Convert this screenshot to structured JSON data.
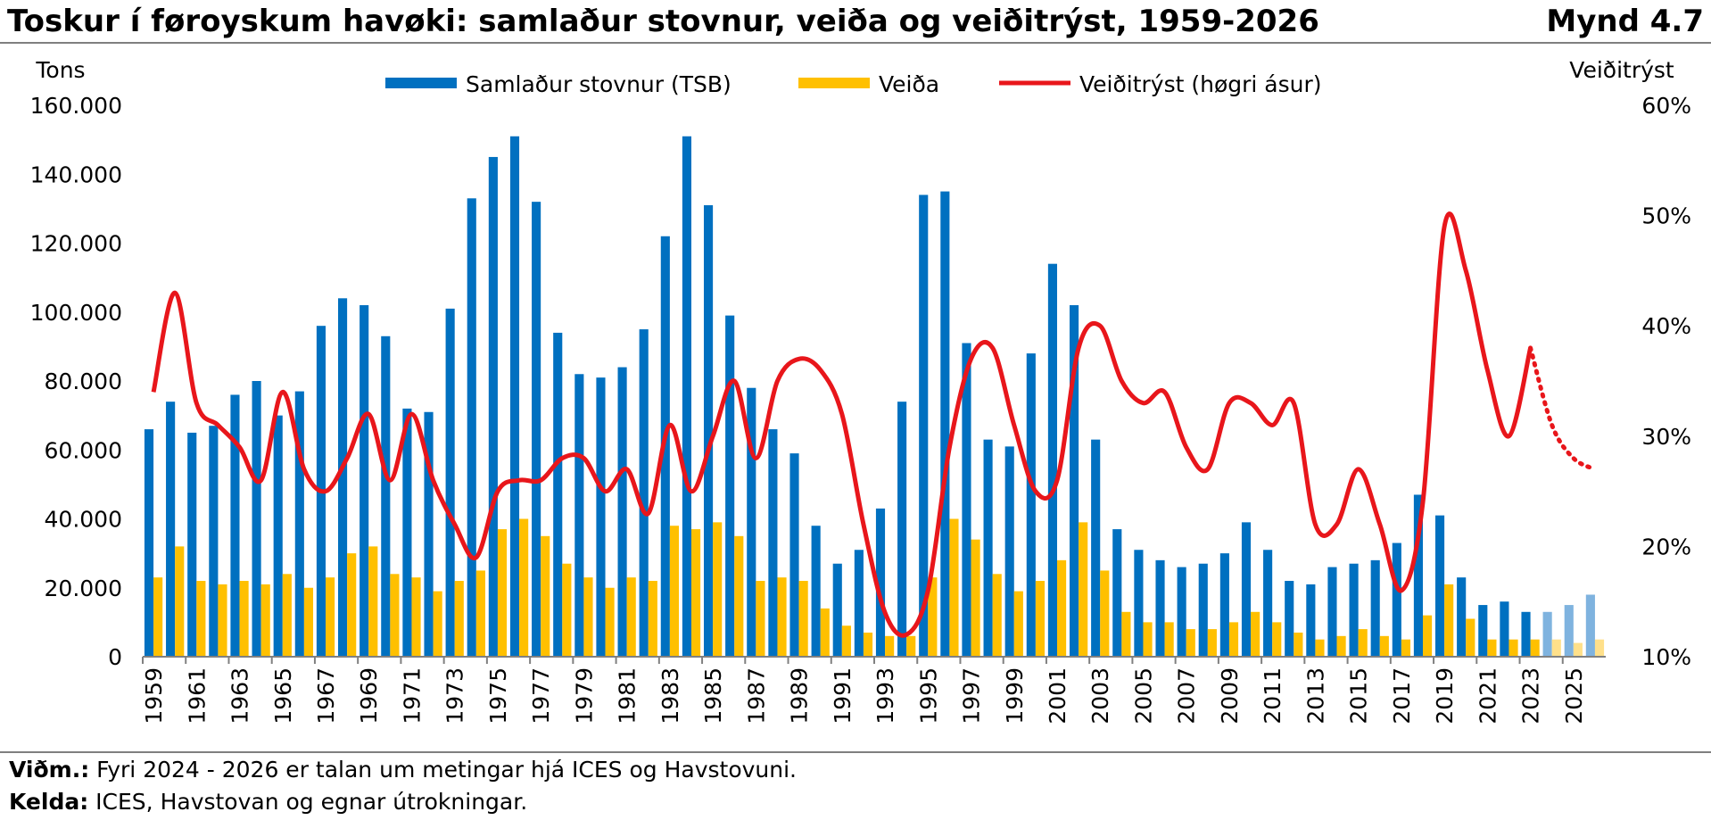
{
  "header": {
    "title": "Toskur í føroyskum havøki: samlaður stovnur, veiða og veiðitrýst, 1959-2026",
    "figure_label": "Mynd 4.7"
  },
  "footer": {
    "note_label": "Viðm.:",
    "note_text": " Fyri 2024 - 2026 er talan um metingar hjá ICES og Havstovuni.",
    "source_label": "Kelda:",
    "source_text": " ICES, Havstovan og egnar útrokningar."
  },
  "chart_data": {
    "type": "bar",
    "left_axis_label": "Tons",
    "right_axis_label": "Veiðitrýst",
    "left_ticks": [
      "0",
      "20.000",
      "40.000",
      "60.000",
      "80.000",
      "100.000",
      "120.000",
      "140.000",
      "160.000"
    ],
    "right_ticks": [
      "10%",
      "20%",
      "30%",
      "40%",
      "50%",
      "60%"
    ],
    "ylim_left": [
      0,
      160000
    ],
    "ylim_right": [
      0.1,
      0.6
    ],
    "legend_position": "top",
    "x": [
      1959,
      1960,
      1961,
      1962,
      1963,
      1964,
      1965,
      1966,
      1967,
      1968,
      1969,
      1970,
      1971,
      1972,
      1973,
      1974,
      1975,
      1976,
      1977,
      1978,
      1979,
      1980,
      1981,
      1982,
      1983,
      1984,
      1985,
      1986,
      1987,
      1988,
      1989,
      1990,
      1991,
      1992,
      1993,
      1994,
      1995,
      1996,
      1997,
      1998,
      1999,
      2000,
      2001,
      2002,
      2003,
      2004,
      2005,
      2006,
      2007,
      2008,
      2009,
      2010,
      2011,
      2012,
      2013,
      2014,
      2015,
      2016,
      2017,
      2018,
      2019,
      2020,
      2021,
      2022,
      2023,
      2024,
      2025,
      2026
    ],
    "x_tick_labels": [
      "1959",
      "1961",
      "1963",
      "1965",
      "1967",
      "1969",
      "1971",
      "1973",
      "1975",
      "1977",
      "1979",
      "1981",
      "1983",
      "1985",
      "1987",
      "1989",
      "1991",
      "1993",
      "1995",
      "1997",
      "1999",
      "2001",
      "2003",
      "2005",
      "2007",
      "2009",
      "2011",
      "2013",
      "2015",
      "2017",
      "2019",
      "2021",
      "2023",
      "2025"
    ],
    "forecast_from_year": 2024,
    "series": [
      {
        "name": "Samlaður stovnur (TSB)",
        "kind": "bar",
        "axis": "left",
        "color": "#0070c0",
        "forecast_color": "#7fb3df",
        "values": [
          66000,
          74000,
          65000,
          67000,
          76000,
          80000,
          70000,
          77000,
          96000,
          104000,
          102000,
          93000,
          72000,
          71000,
          101000,
          133000,
          145000,
          151000,
          132000,
          94000,
          82000,
          81000,
          84000,
          95000,
          122000,
          151000,
          131000,
          99000,
          78000,
          66000,
          59000,
          38000,
          27000,
          31000,
          43000,
          74000,
          134000,
          135000,
          91000,
          63000,
          61000,
          88000,
          114000,
          102000,
          63000,
          37000,
          31000,
          28000,
          26000,
          27000,
          30000,
          39000,
          31000,
          22000,
          21000,
          26000,
          27000,
          28000,
          33000,
          47000,
          41000,
          23000,
          15000,
          16000,
          13000,
          13000,
          15000,
          18000
        ]
      },
      {
        "name": "Veiða",
        "kind": "bar",
        "axis": "left",
        "color": "#ffc000",
        "forecast_color": "#ffe08a",
        "values": [
          23000,
          32000,
          22000,
          21000,
          22000,
          21000,
          24000,
          20000,
          23000,
          30000,
          32000,
          24000,
          23000,
          19000,
          22000,
          25000,
          37000,
          40000,
          35000,
          27000,
          23000,
          20000,
          23000,
          22000,
          38000,
          37000,
          39000,
          35000,
          22000,
          23000,
          22000,
          14000,
          9000,
          7000,
          6000,
          6000,
          23000,
          40000,
          34000,
          24000,
          19000,
          22000,
          28000,
          39000,
          25000,
          13000,
          10000,
          10000,
          8000,
          8000,
          10000,
          13000,
          10000,
          7000,
          5000,
          6000,
          8000,
          6000,
          5000,
          12000,
          21000,
          11000,
          5000,
          5000,
          5000,
          5000,
          4000,
          5000
        ]
      },
      {
        "name": "Veiðitrýst (høgri ásur)",
        "kind": "line",
        "axis": "right",
        "color": "#e8161b",
        "values": [
          0.34,
          0.43,
          0.33,
          0.31,
          0.29,
          0.26,
          0.34,
          0.27,
          0.25,
          0.28,
          0.32,
          0.26,
          0.32,
          0.26,
          0.22,
          0.19,
          0.25,
          0.26,
          0.26,
          0.28,
          0.28,
          0.25,
          0.27,
          0.23,
          0.31,
          0.25,
          0.3,
          0.35,
          0.28,
          0.35,
          0.37,
          0.36,
          0.32,
          0.22,
          0.14,
          0.12,
          0.16,
          0.29,
          0.37,
          0.38,
          0.31,
          0.25,
          0.26,
          0.38,
          0.4,
          0.35,
          0.33,
          0.34,
          0.29,
          0.27,
          0.33,
          0.33,
          0.31,
          0.33,
          0.22,
          0.22,
          0.27,
          0.22,
          0.16,
          0.24,
          0.49,
          0.45,
          0.36,
          0.3,
          0.38,
          0.31,
          0.28,
          0.27
        ]
      }
    ]
  }
}
